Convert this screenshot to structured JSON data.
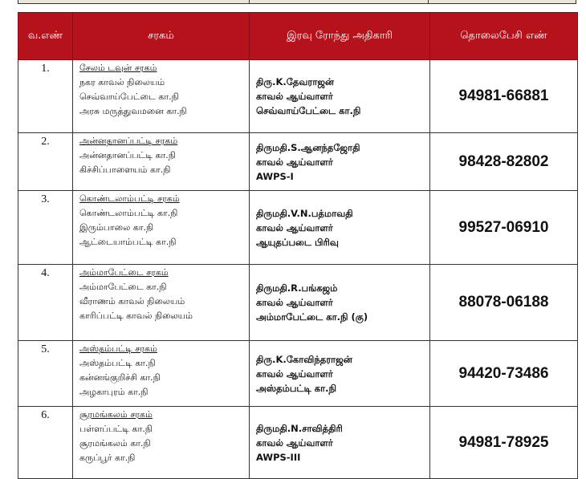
{
  "header": {
    "sno": "வ.எண்",
    "circle": "சரகம்",
    "officer": "இரவு ரோந்து அதிகாரி",
    "phone": "தொலைபேசி எண்"
  },
  "colors": {
    "header_bg": "#b5121b",
    "header_text": "#ffffff"
  },
  "rows": [
    {
      "sno": "1.",
      "circle": "சேலம் டவுன் சரகம்",
      "stations": [
        "நகர காவல் நிலையம்",
        "செவ்வாய்பேட்டை கா.நி",
        "அரசு மருத்துவமனை கா.நி"
      ],
      "officer": [
        "திரு.K.தேவராஜன்",
        "காவல் ஆய்வாளர்",
        "செவ்வாய்பேட்டை கா.நி"
      ],
      "phone": "94981-66881"
    },
    {
      "sno": "2.",
      "circle": "அன்னதானப்பட்டி சரகம்",
      "stations": [
        "அன்னதானப்பட்டி கா.நி",
        "கிச்சிப்பாளையம் கா.நி",
        ""
      ],
      "officer": [
        "திருமதி.S.ஆனந்தஜோதி",
        "காவல் ஆய்வாளர்",
        "AWPS-I"
      ],
      "phone": "98428-82802"
    },
    {
      "sno": "3.",
      "circle": "கொண்டலாம்பட்டி சரகம்",
      "stations": [
        "கொண்டலாம்பட்டி கா.நி",
        "இரும்பாலை கா.நி",
        "ஆட்டையாம்பட்டி கா.நி"
      ],
      "officer": [
        "திருமதி.V.N.பத்மாவதி",
        "காவல் ஆய்வாளர்",
        "ஆயுதப்படை பிரிவு"
      ],
      "phone": "99527-06910"
    },
    {
      "sno": "4.",
      "circle": "அம்மாபேட்டை சரகம்",
      "stations": [
        "அம்மாபேட்டை கா.நி",
        "வீராணம் காவல் நிலையம்",
        "காரிப்பட்டி காவல் நிலையம்"
      ],
      "officer": [
        "திருமதி.R.பங்கஜம்",
        "காவல் ஆய்வாளர்",
        "அம்மாபேட்டை கா.நி (கு)"
      ],
      "phone": "88078-06188"
    },
    {
      "sno": "5.",
      "circle": "அஸ்தம்பட்டி சரகம்",
      "stations": [
        "அஸ்தம்பட்டி கா.நி",
        "கன்னங்குறிச்சி கா.நி",
        "அழகாபுரம் கா.நி"
      ],
      "officer": [
        "திரு.K.கோவிந்தராஜன்",
        "காவல் ஆய்வாளர்",
        "அஸ்தம்பட்டி கா.நி"
      ],
      "phone": "94420-73486"
    },
    {
      "sno": "6.",
      "circle": "சூரமங்கலம் சரகம்",
      "stations": [
        "பள்ளப்பட்டி கா.நி",
        "சூரமங்கலம் கா.நி",
        "கருப்பூர் கா.நி"
      ],
      "officer": [
        "திருமதி.N.சாவித்திரி",
        "காவல் ஆய்வாளர்",
        "AWPS-III"
      ],
      "phone": "94981-78925"
    }
  ]
}
